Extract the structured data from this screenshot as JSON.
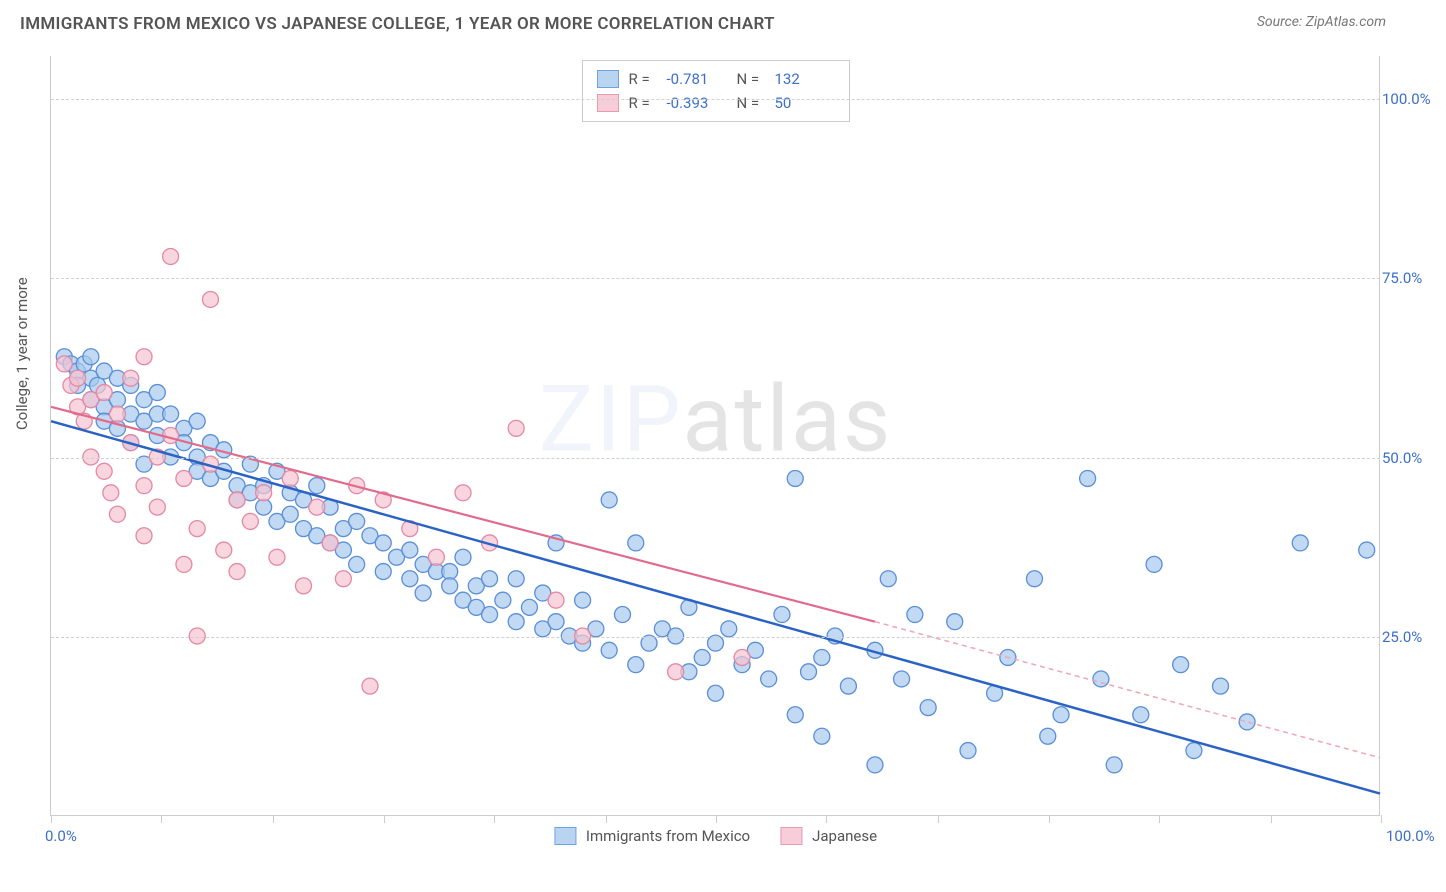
{
  "header": {
    "title": "IMMIGRANTS FROM MEXICO VS JAPANESE COLLEGE, 1 YEAR OR MORE CORRELATION CHART",
    "source": "Source: ZipAtlas.com"
  },
  "chart": {
    "type": "scatter",
    "watermark": "ZIPatlas",
    "background_color": "#ffffff",
    "grid_color": "#d0d0d0",
    "axis_color": "#cccccc",
    "y_axis_title": "College, 1 year or more",
    "y_axis_title_fontsize": 15,
    "xlim": [
      0,
      100
    ],
    "ylim": [
      0,
      106
    ],
    "x_ticks": [
      0,
      8.3,
      16.7,
      25,
      33.3,
      41.7,
      50,
      58.3,
      66.7,
      75,
      83.3,
      91.7,
      100
    ],
    "x_tick_labels": {
      "0": "0.0%",
      "100": "100.0%"
    },
    "y_gridlines": [
      25,
      50,
      75,
      100
    ],
    "y_tick_labels": {
      "25": "25.0%",
      "50": "50.0%",
      "75": "75.0%",
      "100": "100.0%"
    },
    "tick_label_color": "#3b6fc9",
    "tick_fontsize": 15,
    "legend_top": {
      "rows": [
        {
          "swatch_fill": "#b9d4f1",
          "swatch_stroke": "#6fa3e0",
          "r_label": "R =",
          "r_value": "-0.781",
          "n_label": "N =",
          "n_value": "132"
        },
        {
          "swatch_fill": "#f7cdd9",
          "swatch_stroke": "#e89ab0",
          "r_label": "R =",
          "r_value": "-0.393",
          "n_label": "N =",
          "n_value": "50"
        }
      ]
    },
    "legend_bottom": {
      "items": [
        {
          "swatch_fill": "#b9d4f1",
          "swatch_stroke": "#6fa3e0",
          "label": "Immigrants from Mexico"
        },
        {
          "swatch_fill": "#f7cdd9",
          "swatch_stroke": "#e89ab0",
          "label": "Japanese"
        }
      ]
    },
    "series": [
      {
        "name": "mexico",
        "marker_fill": "#a7c9ee",
        "marker_stroke": "#5b8fd6",
        "marker_opacity": 0.7,
        "marker_radius": 8,
        "trend_line": {
          "x1": 0,
          "y1": 55,
          "x2": 100,
          "y2": 3,
          "stroke": "#2b63c4",
          "width": 2.5,
          "dash": "none"
        },
        "points": [
          [
            1,
            64
          ],
          [
            1.5,
            63
          ],
          [
            2,
            62
          ],
          [
            2,
            60
          ],
          [
            2.5,
            63
          ],
          [
            3,
            61
          ],
          [
            3,
            64
          ],
          [
            3,
            58
          ],
          [
            3.5,
            60
          ],
          [
            4,
            62
          ],
          [
            4,
            57
          ],
          [
            4,
            55
          ],
          [
            5,
            61
          ],
          [
            5,
            58
          ],
          [
            5,
            54
          ],
          [
            6,
            60
          ],
          [
            6,
            56
          ],
          [
            6,
            52
          ],
          [
            7,
            58
          ],
          [
            7,
            55
          ],
          [
            7,
            49
          ],
          [
            8,
            56
          ],
          [
            8,
            53
          ],
          [
            8,
            59
          ],
          [
            9,
            56
          ],
          [
            9,
            50
          ],
          [
            10,
            54
          ],
          [
            10,
            52
          ],
          [
            11,
            50
          ],
          [
            11,
            48
          ],
          [
            11,
            55
          ],
          [
            12,
            52
          ],
          [
            12,
            47
          ],
          [
            13,
            48
          ],
          [
            13,
            51
          ],
          [
            14,
            46
          ],
          [
            14,
            44
          ],
          [
            15,
            49
          ],
          [
            15,
            45
          ],
          [
            16,
            46
          ],
          [
            16,
            43
          ],
          [
            17,
            48
          ],
          [
            17,
            41
          ],
          [
            18,
            45
          ],
          [
            18,
            42
          ],
          [
            19,
            44
          ],
          [
            19,
            40
          ],
          [
            20,
            46
          ],
          [
            20,
            39
          ],
          [
            21,
            43
          ],
          [
            21,
            38
          ],
          [
            22,
            40
          ],
          [
            22,
            37
          ],
          [
            23,
            41
          ],
          [
            23,
            35
          ],
          [
            24,
            39
          ],
          [
            25,
            38
          ],
          [
            25,
            34
          ],
          [
            26,
            36
          ],
          [
            27,
            37
          ],
          [
            27,
            33
          ],
          [
            28,
            35
          ],
          [
            28,
            31
          ],
          [
            29,
            34
          ],
          [
            30,
            34
          ],
          [
            30,
            32
          ],
          [
            31,
            36
          ],
          [
            31,
            30
          ],
          [
            32,
            32
          ],
          [
            32,
            29
          ],
          [
            33,
            33
          ],
          [
            33,
            28
          ],
          [
            34,
            30
          ],
          [
            35,
            33
          ],
          [
            35,
            27
          ],
          [
            36,
            29
          ],
          [
            37,
            31
          ],
          [
            37,
            26
          ],
          [
            38,
            38
          ],
          [
            38,
            27
          ],
          [
            39,
            25
          ],
          [
            40,
            30
          ],
          [
            40,
            24
          ],
          [
            41,
            26
          ],
          [
            42,
            44
          ],
          [
            42,
            23
          ],
          [
            43,
            28
          ],
          [
            44,
            38
          ],
          [
            44,
            21
          ],
          [
            45,
            24
          ],
          [
            46,
            26
          ],
          [
            47,
            25
          ],
          [
            48,
            20
          ],
          [
            48,
            29
          ],
          [
            49,
            22
          ],
          [
            50,
            24
          ],
          [
            50,
            17
          ],
          [
            51,
            26
          ],
          [
            52,
            21
          ],
          [
            53,
            23
          ],
          [
            54,
            19
          ],
          [
            55,
            28
          ],
          [
            56,
            47
          ],
          [
            56,
            14
          ],
          [
            57,
            20
          ],
          [
            58,
            22
          ],
          [
            58,
            11
          ],
          [
            59,
            25
          ],
          [
            60,
            18
          ],
          [
            62,
            23
          ],
          [
            62,
            7
          ],
          [
            63,
            33
          ],
          [
            64,
            19
          ],
          [
            65,
            28
          ],
          [
            66,
            15
          ],
          [
            68,
            27
          ],
          [
            69,
            9
          ],
          [
            71,
            17
          ],
          [
            72,
            22
          ],
          [
            74,
            33
          ],
          [
            75,
            11
          ],
          [
            76,
            14
          ],
          [
            78,
            47
          ],
          [
            79,
            19
          ],
          [
            80,
            7
          ],
          [
            82,
            14
          ],
          [
            83,
            35
          ],
          [
            85,
            21
          ],
          [
            86,
            9
          ],
          [
            88,
            18
          ],
          [
            90,
            13
          ],
          [
            94,
            38
          ],
          [
            99,
            37
          ]
        ]
      },
      {
        "name": "japanese",
        "marker_fill": "#f5c3d2",
        "marker_stroke": "#e389a4",
        "marker_opacity": 0.7,
        "marker_radius": 8,
        "trend_line_solid": {
          "x1": 0,
          "y1": 57,
          "x2": 62,
          "y2": 27,
          "stroke": "#e16b8c",
          "width": 2.2
        },
        "trend_line_dash": {
          "x1": 62,
          "y1": 27,
          "x2": 100,
          "y2": 8,
          "stroke": "#f0a5b8",
          "width": 1.5,
          "dash": "5,4"
        },
        "points": [
          [
            1,
            63
          ],
          [
            1.5,
            60
          ],
          [
            2,
            61
          ],
          [
            2,
            57
          ],
          [
            2.5,
            55
          ],
          [
            3,
            58
          ],
          [
            3,
            50
          ],
          [
            4,
            59
          ],
          [
            4,
            48
          ],
          [
            4.5,
            45
          ],
          [
            5,
            56
          ],
          [
            5,
            42
          ],
          [
            6,
            52
          ],
          [
            6,
            61
          ],
          [
            7,
            64
          ],
          [
            7,
            46
          ],
          [
            7,
            39
          ],
          [
            8,
            50
          ],
          [
            8,
            43
          ],
          [
            9,
            78
          ],
          [
            9,
            53
          ],
          [
            10,
            47
          ],
          [
            10,
            35
          ],
          [
            11,
            40
          ],
          [
            11,
            25
          ],
          [
            12,
            49
          ],
          [
            12,
            72
          ],
          [
            13,
            37
          ],
          [
            14,
            44
          ],
          [
            14,
            34
          ],
          [
            15,
            41
          ],
          [
            16,
            45
          ],
          [
            17,
            36
          ],
          [
            18,
            47
          ],
          [
            19,
            32
          ],
          [
            20,
            43
          ],
          [
            21,
            38
          ],
          [
            22,
            33
          ],
          [
            23,
            46
          ],
          [
            24,
            18
          ],
          [
            25,
            44
          ],
          [
            27,
            40
          ],
          [
            29,
            36
          ],
          [
            31,
            45
          ],
          [
            33,
            38
          ],
          [
            35,
            54
          ],
          [
            38,
            30
          ],
          [
            40,
            25
          ],
          [
            47,
            20
          ],
          [
            52,
            22
          ]
        ]
      }
    ]
  }
}
